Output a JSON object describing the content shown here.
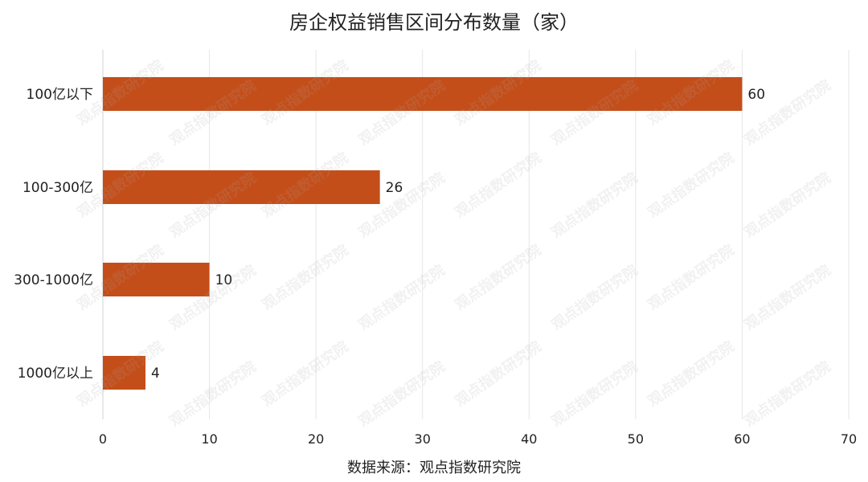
{
  "title": "房企权益销售区间分布数量（家）",
  "source": "数据来源：观点指数研究院",
  "watermark": "观点指数研究院",
  "colors": {
    "bar": "#C44E1A",
    "grid": "#E6E6E6",
    "text": "#222222"
  },
  "chart_data": {
    "type": "bar",
    "orientation": "horizontal",
    "categories": [
      "100亿以下",
      "100-300亿",
      "300-1000亿",
      "1000亿以上"
    ],
    "values": [
      60,
      26,
      10,
      4
    ],
    "xlim": [
      0,
      70
    ],
    "xticks": [
      0,
      10,
      20,
      30,
      40,
      50,
      60,
      70
    ],
    "grid": "vertical",
    "data_labels": true
  }
}
